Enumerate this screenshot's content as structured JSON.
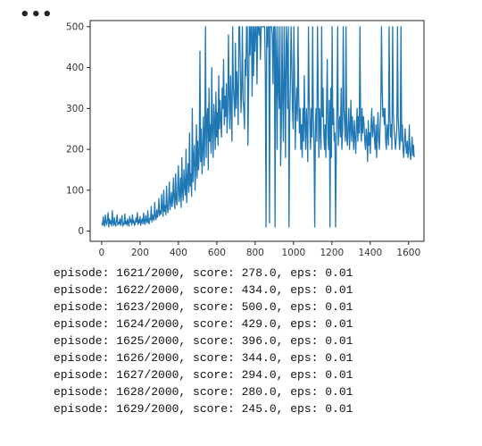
{
  "cell": {
    "menu_label": "•••"
  },
  "chart_data": {
    "type": "line",
    "title": "",
    "xlabel": "",
    "ylabel": "",
    "xlim": [
      -60,
      1680
    ],
    "ylim": [
      -25,
      515
    ],
    "xticks": [
      0,
      200,
      400,
      600,
      800,
      1000,
      1200,
      1400,
      1600
    ],
    "yticks": [
      0,
      100,
      200,
      300,
      400,
      500
    ],
    "line_color": "#1f77b4",
    "grid": false,
    "series": [
      {
        "values": [
          20,
          14,
          35,
          18,
          12,
          40,
          22,
          15,
          28,
          45,
          10,
          30,
          18,
          25,
          12,
          50,
          20,
          14,
          33,
          17,
          12,
          28,
          40,
          15,
          22,
          18,
          30,
          14,
          25,
          38,
          12,
          20,
          16,
          42,
          18,
          24,
          14,
          30,
          19,
          12,
          36,
          22,
          28,
          15,
          40,
          20,
          26,
          14,
          18,
          32,
          22,
          45,
          16,
          28,
          20,
          35,
          14,
          25,
          30,
          18,
          44,
          22,
          16,
          38,
          26,
          20,
          50,
          24,
          18,
          32,
          28,
          60,
          22,
          40,
          30,
          26,
          70,
          35,
          28,
          52,
          34,
          45,
          80,
          38,
          50,
          42,
          90,
          55,
          36,
          100,
          48,
          62,
          40,
          110,
          58,
          45,
          75,
          120,
          52,
          68,
          95,
          60,
          85,
          130,
          70,
          55,
          140,
          78,
          64,
          110,
          160,
          72,
          90,
          130,
          58,
          180,
          95,
          75,
          150,
          110,
          88,
          200,
          70,
          125,
          165,
          95,
          240,
          110,
          140,
          85,
          300,
          120,
          180,
          210,
          100,
          160,
          260,
          130,
          220,
          150,
          190,
          440,
          170,
          250,
          140,
          200,
          280,
          160,
          230,
          500,
          180,
          270,
          300,
          150,
          350,
          220,
          260,
          190,
          400,
          240,
          180,
          310,
          270,
          200,
          340,
          230,
          290,
          210,
          380,
          250,
          320,
          270,
          230,
          350,
          300,
          420,
          260,
          330,
          280,
          360,
          240,
          300,
          480,
          330,
          250,
          380,
          300,
          220,
          500,
          350,
          320,
          280,
          460,
          300,
          390,
          340,
          260,
          500,
          500,
          400,
          290,
          350,
          500,
          320,
          300,
          250,
          420,
          380,
          500,
          500,
          210,
          350,
          500,
          430,
          500,
          500,
          330,
          500,
          380,
          500,
          440,
          500,
          500,
          360,
          500,
          500,
          480,
          500,
          420,
          500,
          500,
          500,
          500,
          500,
          500,
          390,
          10,
          500,
          450,
          500,
          500,
          20,
          500,
          500,
          500,
          480,
          360,
          500,
          500,
          10,
          500,
          420,
          200,
          500,
          350,
          300,
          500,
          160,
          250,
          500,
          320,
          220,
          500,
          380,
          180,
          500,
          460,
          300,
          500,
          10,
          270,
          360,
          500,
          420,
          300,
          250,
          500,
          380,
          200,
          300,
          350,
          270,
          500,
          330,
          240,
          300,
          200,
          260,
          180,
          300,
          220,
          380,
          260,
          200,
          300,
          250,
          170,
          500,
          330,
          260,
          200,
          300,
          230,
          500,
          280,
          210,
          10,
          260,
          300,
          220,
          500,
          350,
          180,
          300,
          250,
          200,
          500,
          280,
          350,
          240,
          200,
          260,
          180,
          300,
          420,
          230,
          200,
          320,
          10,
          350,
          180,
          500,
          260,
          300,
          220,
          240,
          10,
          200,
          300,
          500,
          210,
          260,
          280,
          230,
          350,
          200,
          240,
          500,
          300,
          260,
          220,
          500,
          230,
          210,
          260,
          300,
          200,
          250,
          320,
          220,
          280,
          240,
          200,
          270,
          230,
          190,
          260,
          300,
          220,
          280,
          240,
          500,
          260,
          220,
          300,
          240,
          280,
          260,
          220,
          200,
          250,
          230,
          170,
          270,
          210,
          240,
          190,
          260,
          300,
          230,
          250,
          280,
          220,
          200,
          260,
          180,
          240,
          290,
          220,
          200,
          260,
          300,
          500,
          350,
          280,
          300,
          260,
          300,
          220,
          200,
          260,
          240,
          210,
          500,
          280,
          230,
          260,
          200,
          500,
          290,
          250,
          230,
          200,
          220,
          250,
          500,
          280,
          240,
          200,
          230,
          500,
          220,
          260,
          200,
          180,
          220,
          250,
          210,
          190,
          220,
          180,
          200,
          260,
          190,
          175,
          200,
          230,
          185,
          210,
          180
        ],
        "x_start": 1,
        "x_end": 1629
      }
    ]
  },
  "log": {
    "lines": [
      "episode: 1621/2000, score: 278.0, eps: 0.01",
      "episode: 1622/2000, score: 434.0, eps: 0.01",
      "episode: 1623/2000, score: 500.0, eps: 0.01",
      "episode: 1624/2000, score: 429.0, eps: 0.01",
      "episode: 1625/2000, score: 396.0, eps: 0.01",
      "episode: 1626/2000, score: 344.0, eps: 0.01",
      "episode: 1627/2000, score: 294.0, eps: 0.01",
      "episode: 1628/2000, score: 280.0, eps: 0.01",
      "episode: 1629/2000, score: 245.0, eps: 0.01"
    ]
  }
}
